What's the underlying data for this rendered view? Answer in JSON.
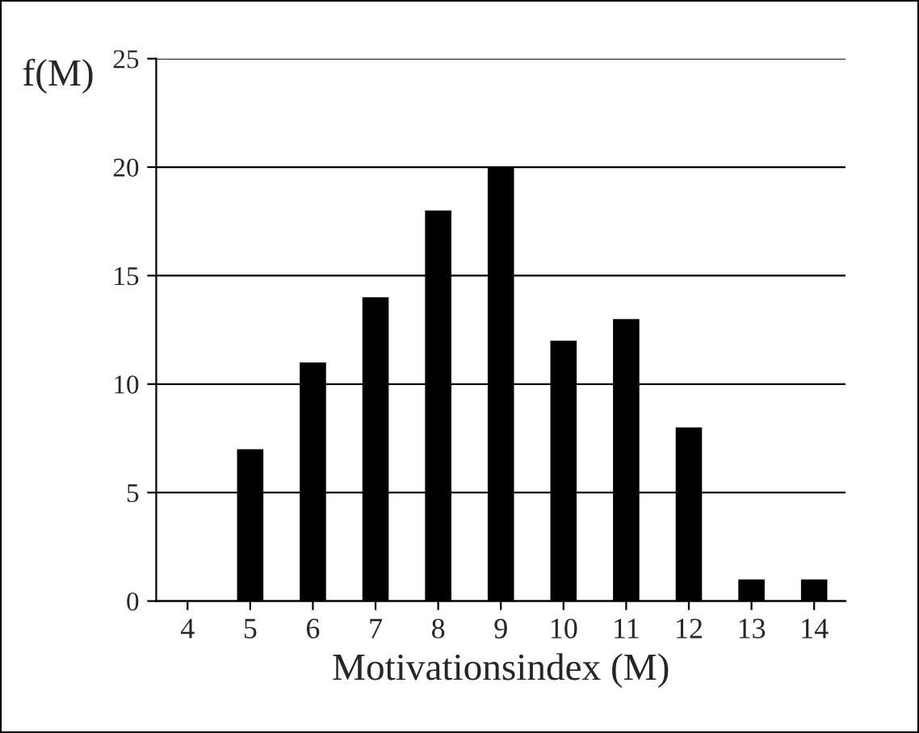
{
  "chart_data": {
    "type": "bar",
    "xlabel": "Motivationsindex (M)",
    "ylabel": "f(M)",
    "categories": [
      "4",
      "5",
      "6",
      "7",
      "8",
      "9",
      "10",
      "11",
      "12",
      "13",
      "14"
    ],
    "values": [
      0,
      7,
      11,
      14,
      18,
      20,
      12,
      13,
      8,
      1,
      1
    ],
    "color": "#000000",
    "ylim": [
      0,
      25
    ],
    "yticks": [
      0,
      5,
      10,
      15,
      20,
      25
    ],
    "grid": "y"
  }
}
